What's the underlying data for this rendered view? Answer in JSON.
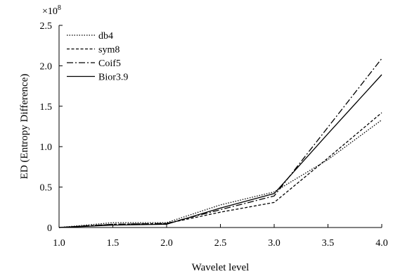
{
  "chart_data": {
    "type": "line",
    "title": "",
    "xlabel": "Wavelet level",
    "ylabel": "ED (Entropy Difference)",
    "y_multiplier_label": {
      "base": "×10",
      "exponent": "8"
    },
    "xlim": [
      1.0,
      4.0
    ],
    "ylim": [
      0,
      2.5
    ],
    "x_ticks": [
      "1.0",
      "1.5",
      "2.0",
      "2.5",
      "3.0",
      "3.5",
      "4.0"
    ],
    "y_ticks": [
      "0",
      "0.5",
      "1.0",
      "1.5",
      "2.0",
      "2.5"
    ],
    "x": [
      1.0,
      1.5,
      2.0,
      2.5,
      3.0,
      3.5,
      4.0
    ],
    "series": [
      {
        "name": "db4",
        "dash": "1.5,2",
        "values": [
          0,
          0.06,
          0.06,
          0.28,
          0.44,
          0.84,
          1.33
        ]
      },
      {
        "name": "sym8",
        "dash": "4,2.5",
        "values": [
          0,
          0.04,
          0.05,
          0.19,
          0.31,
          0.86,
          1.42
        ]
      },
      {
        "name": "Coif5",
        "dash": "9,3,2,3",
        "values": [
          0,
          0.04,
          0.05,
          0.22,
          0.39,
          1.24,
          2.09
        ]
      },
      {
        "name": "Bior3.9",
        "dash": "",
        "values": [
          0,
          0.03,
          0.04,
          0.24,
          0.42,
          1.16,
          1.89
        ]
      }
    ],
    "legend_position": "top-left",
    "grid": false
  }
}
